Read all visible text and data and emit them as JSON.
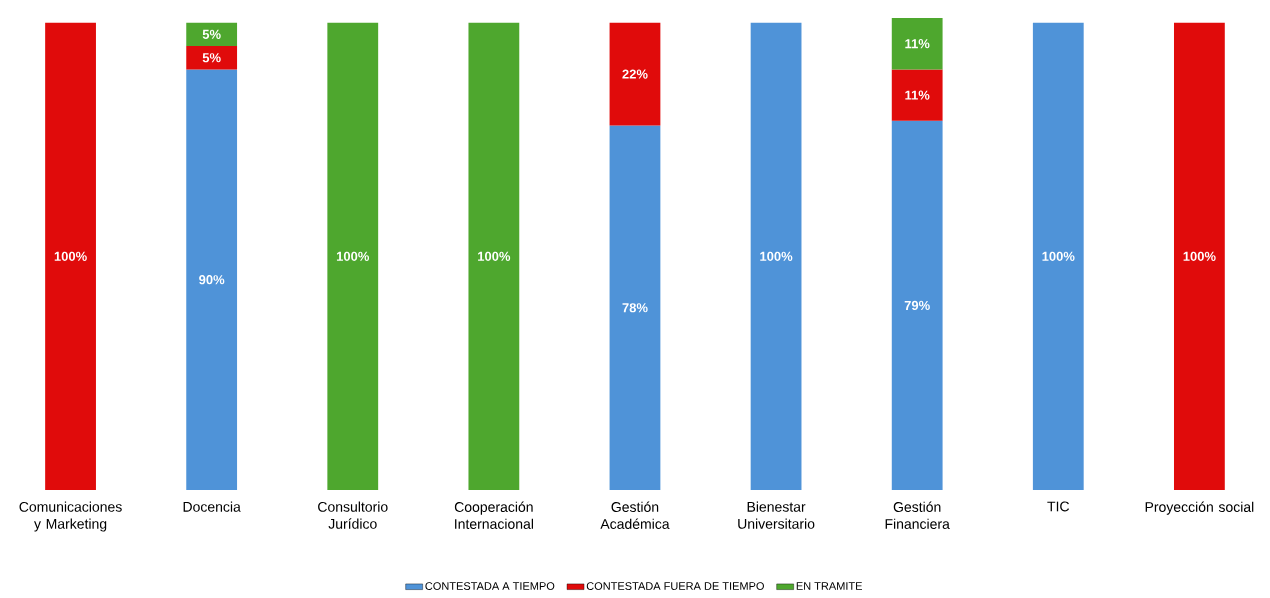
{
  "chart_data": {
    "type": "bar",
    "stacked": true,
    "legend": "bottom",
    "categories": [
      "Comunicaciones y Marketing",
      "Docencia",
      "Consultorio Jurídico",
      "Cooperación Internacional",
      "Gestión Académica",
      "Bienestar Universitario",
      "Gestión Financiera",
      "TIC",
      "Proyección social"
    ],
    "series": [
      {
        "name": "CONTESTADA A TIEMPO",
        "color": "#4f93d8",
        "values": [
          null,
          90,
          null,
          null,
          78,
          100,
          79,
          100,
          null
        ],
        "value_labels": [
          null,
          "90%",
          null,
          null,
          "78%",
          "100%",
          "79%",
          "100%",
          null
        ]
      },
      {
        "name": "CONTESTADA FUERA DE TIEMPO",
        "color": "#e00b0b",
        "values": [
          100,
          5,
          null,
          null,
          22,
          null,
          11,
          null,
          100
        ],
        "value_labels": [
          "100%",
          "5%",
          null,
          null,
          "22%",
          null,
          "11%",
          null,
          "100%"
        ]
      },
      {
        "name": "EN TRAMITE",
        "color": "#4ea72e",
        "values": [
          null,
          5,
          100,
          100,
          null,
          null,
          11,
          null,
          null
        ],
        "value_labels": [
          null,
          "5%",
          "100%",
          "100%",
          null,
          null,
          "11%",
          null,
          null
        ]
      }
    ]
  }
}
